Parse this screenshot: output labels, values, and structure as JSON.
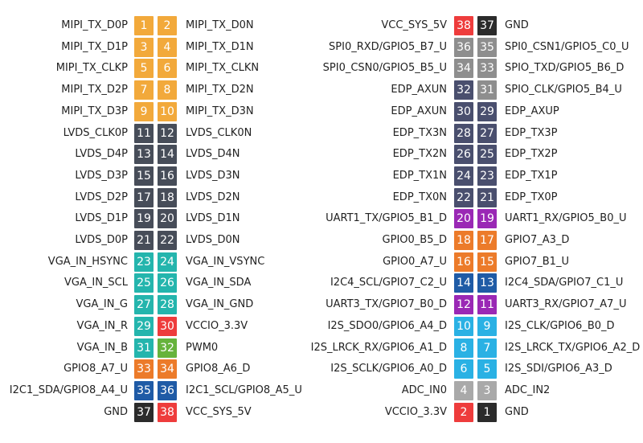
{
  "colors": {
    "orange_light": "#f2a93b",
    "dark": "#474d59",
    "teal": "#24b5ad",
    "red": "#ee3c3c",
    "green": "#66b33c",
    "orange": "#ec7b2a",
    "blue": "#1f5ba6",
    "black": "#2b2b2b",
    "gray": "#8e8e8e",
    "slate": "#4a4f6e",
    "purple": "#9a28b5",
    "sky": "#2ab1e4",
    "light_gray": "#a9a9a9"
  },
  "left_header": [
    {
      "left": "MIPI_TX_D0P",
      "ln": "1",
      "lc": "orange_light",
      "rn": "2",
      "rc": "orange_light",
      "right": "MIPI_TX_D0N"
    },
    {
      "left": "MIPI_TX_D1P",
      "ln": "3",
      "lc": "orange_light",
      "rn": "4",
      "rc": "orange_light",
      "right": "MIPI_TX_D1N"
    },
    {
      "left": "MIPI_TX_CLKP",
      "ln": "5",
      "lc": "orange_light",
      "rn": "6",
      "rc": "orange_light",
      "right": "MIPI_TX_CLKN"
    },
    {
      "left": "MIPI_TX_D2P",
      "ln": "7",
      "lc": "orange_light",
      "rn": "8",
      "rc": "orange_light",
      "right": "MIPI_TX_D2N"
    },
    {
      "left": "MIPI_TX_D3P",
      "ln": "9",
      "lc": "orange_light",
      "rn": "10",
      "rc": "orange_light",
      "right": "MIPI_TX_D3N"
    },
    {
      "left": "LVDS_CLK0P",
      "ln": "11",
      "lc": "dark",
      "rn": "12",
      "rc": "dark",
      "right": "LVDS_CLK0N"
    },
    {
      "left": "LVDS_D4P",
      "ln": "13",
      "lc": "dark",
      "rn": "14",
      "rc": "dark",
      "right": "LVDS_D4N"
    },
    {
      "left": "LVDS_D3P",
      "ln": "15",
      "lc": "dark",
      "rn": "16",
      "rc": "dark",
      "right": "LVDS_D3N"
    },
    {
      "left": "LVDS_D2P",
      "ln": "17",
      "lc": "dark",
      "rn": "18",
      "rc": "dark",
      "right": "LVDS_D2N"
    },
    {
      "left": "LVDS_D1P",
      "ln": "19",
      "lc": "dark",
      "rn": "20",
      "rc": "dark",
      "right": "LVDS_D1N"
    },
    {
      "left": "LVDS_D0P",
      "ln": "21",
      "lc": "dark",
      "rn": "22",
      "rc": "dark",
      "right": "LVDS_D0N"
    },
    {
      "left": "VGA_IN_HSYNC",
      "ln": "23",
      "lc": "teal",
      "rn": "24",
      "rc": "teal",
      "right": "VGA_IN_VSYNC"
    },
    {
      "left": "VGA_IN_SCL",
      "ln": "25",
      "lc": "teal",
      "rn": "26",
      "rc": "teal",
      "right": "VGA_IN_SDA"
    },
    {
      "left": "VGA_IN_G",
      "ln": "27",
      "lc": "teal",
      "rn": "28",
      "rc": "teal",
      "right": "VGA_IN_GND"
    },
    {
      "left": "VGA_IN_R",
      "ln": "29",
      "lc": "teal",
      "rn": "30",
      "rc": "red",
      "right": "VCCIO_3.3V"
    },
    {
      "left": "VGA_IN_B",
      "ln": "31",
      "lc": "teal",
      "rn": "32",
      "rc": "green",
      "right": "PWM0"
    },
    {
      "left": "GPIO8_A7_U",
      "ln": "33",
      "lc": "orange",
      "rn": "34",
      "rc": "orange",
      "right": "GPIO8_A6_D"
    },
    {
      "left": "I2C1_SDA/GPIO8_A4_U",
      "ln": "35",
      "lc": "blue",
      "rn": "36",
      "rc": "blue",
      "right": "I2C1_SCL/GPIO8_A5_U"
    },
    {
      "left": "GND",
      "ln": "37",
      "lc": "black",
      "rn": "38",
      "rc": "red",
      "right": "VCC_SYS_5V"
    }
  ],
  "right_header": [
    {
      "left": "VCC_SYS_5V",
      "ln": "38",
      "lc": "red",
      "rn": "37",
      "rc": "black",
      "right": "GND"
    },
    {
      "left": "SPI0_RXD/GPIO5_B7_U",
      "ln": "36",
      "lc": "gray",
      "rn": "35",
      "rc": "gray",
      "right": "SPI0_CSN1/GPIO5_C0_U"
    },
    {
      "left": "SPI0_CSN0/GPIO5_B5_U",
      "ln": "34",
      "lc": "gray",
      "rn": "33",
      "rc": "gray",
      "right": "SPIO_TXD/GPIO5_B6_D"
    },
    {
      "left": "EDP_AXUN",
      "ln": "32",
      "lc": "slate",
      "rn": "31",
      "rc": "gray",
      "right": "SPIO_CLK/GPIO5_B4_U"
    },
    {
      "left": "EDP_AXUN",
      "ln": "30",
      "lc": "slate",
      "rn": "29",
      "rc": "slate",
      "right": "EDP_AXUP"
    },
    {
      "left": "EDP_TX3N",
      "ln": "28",
      "lc": "slate",
      "rn": "27",
      "rc": "slate",
      "right": "EDP_TX3P"
    },
    {
      "left": "EDP_TX2N",
      "ln": "26",
      "lc": "slate",
      "rn": "25",
      "rc": "slate",
      "right": "EDP_TX2P"
    },
    {
      "left": "EDP_TX1N",
      "ln": "24",
      "lc": "slate",
      "rn": "23",
      "rc": "slate",
      "right": "EDP_TX1P"
    },
    {
      "left": "EDP_TX0N",
      "ln": "22",
      "lc": "slate",
      "rn": "21",
      "rc": "slate",
      "right": "EDP_TX0P"
    },
    {
      "left": "UART1_TX/GPIO5_B1_D",
      "ln": "20",
      "lc": "purple",
      "rn": "19",
      "rc": "purple",
      "right": "UART1_RX/GPIO5_B0_U"
    },
    {
      "left": "GPIO0_B5_D",
      "ln": "18",
      "lc": "orange",
      "rn": "17",
      "rc": "orange",
      "right": "GPIO7_A3_D"
    },
    {
      "left": "GPIO0_A7_U",
      "ln": "16",
      "lc": "orange",
      "rn": "15",
      "rc": "orange",
      "right": "GPIO7_B1_U"
    },
    {
      "left": "I2C4_SCL/GPIO7_C2_U",
      "ln": "14",
      "lc": "blue",
      "rn": "13",
      "rc": "blue",
      "right": "I2C4_SDA/GPIO7_C1_U"
    },
    {
      "left": "UART3_TX/GPIO7_B0_D",
      "ln": "12",
      "lc": "purple",
      "rn": "11",
      "rc": "purple",
      "right": "UART3_RX/GPIO7_A7_U"
    },
    {
      "left": "I2S_SDO0/GPIO6_A4_D",
      "ln": "10",
      "lc": "sky",
      "rn": "9",
      "rc": "sky",
      "right": "I2S_CLK/GPIO6_B0_D"
    },
    {
      "left": "I2S_LRCK_RX/GPIO6_A1_D",
      "ln": "8",
      "lc": "sky",
      "rn": "7",
      "rc": "sky",
      "right": "I2S_LRCK_TX/GPIO6_A2_D"
    },
    {
      "left": "I2S_SCLK/GPIO6_A0_D",
      "ln": "6",
      "lc": "sky",
      "rn": "5",
      "rc": "sky",
      "right": "I2S_SDI/GPIO6_A3_D"
    },
    {
      "left": "ADC_IN0",
      "ln": "4",
      "lc": "light_gray",
      "rn": "3",
      "rc": "light_gray",
      "right": "ADC_IN2"
    },
    {
      "left": "VCCIO_3.3V",
      "ln": "2",
      "lc": "red",
      "rn": "1",
      "rc": "black",
      "right": "GND"
    }
  ]
}
